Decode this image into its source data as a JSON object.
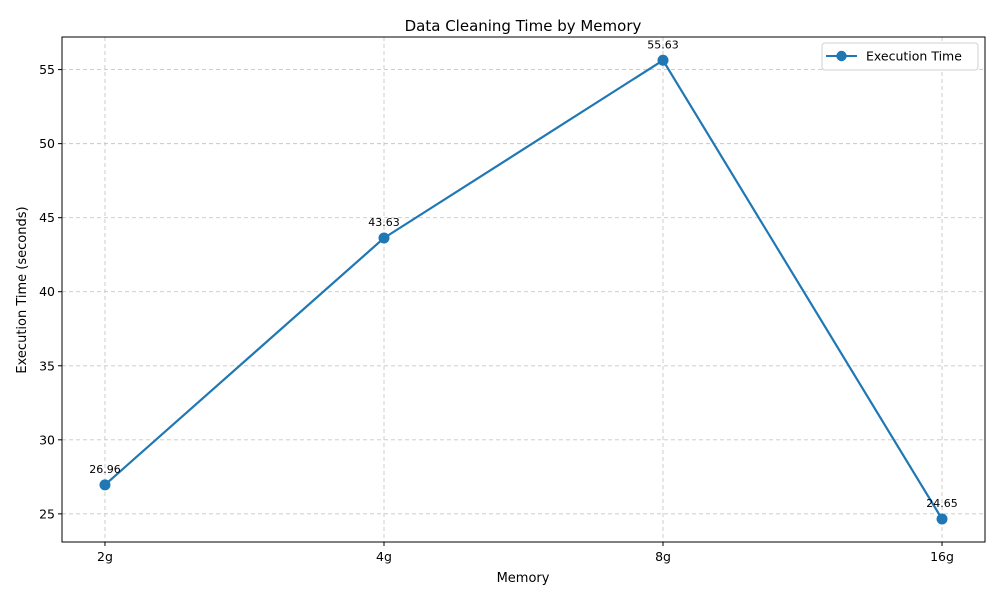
{
  "chart_data": {
    "type": "line",
    "title": "Data Cleaning Time by Memory",
    "xlabel": "Memory",
    "ylabel": "Execution Time (seconds)",
    "categories": [
      "2g",
      "4g",
      "8g",
      "16g"
    ],
    "series": [
      {
        "name": "Execution Time",
        "values": [
          26.96,
          43.63,
          55.63,
          24.65
        ],
        "color": "#1f77b4",
        "marker": "circle"
      }
    ],
    "data_labels": [
      "26.96",
      "43.63",
      "55.63",
      "24.65"
    ],
    "yticks": [
      25,
      30,
      35,
      40,
      45,
      50,
      55
    ],
    "ylim": [
      23.1,
      57.2
    ],
    "grid": true,
    "legend": "top-right"
  }
}
